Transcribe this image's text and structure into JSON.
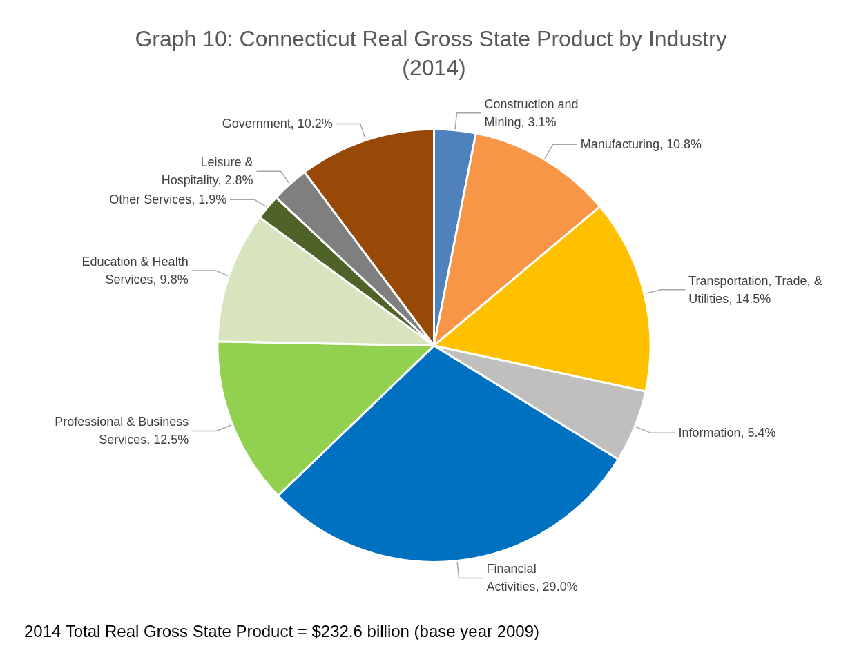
{
  "chart_data": {
    "type": "pie",
    "title": "Graph 10: Connecticut Real Gross State Product by Industry (2014)",
    "categories": [
      "Construction and Mining",
      "Manufacturing",
      "Transportation, Trade, & Utilities",
      "Information",
      "Financial Activities",
      "Professional & Business Services",
      "Education & Health Services",
      "Other Services",
      "Leisure & Hospitality",
      "Government"
    ],
    "values": [
      3.1,
      10.8,
      14.5,
      5.4,
      29.0,
      12.5,
      9.8,
      1.9,
      2.8,
      10.2
    ],
    "value_labels": [
      "3.1%",
      "10.8%",
      "14.5%",
      "5.4%",
      "29.0%",
      "12.5%",
      "9.8%",
      "1.9%",
      "2.8%",
      "10.2%"
    ],
    "colors": [
      "#4f81bd",
      "#f79646",
      "#ffc000",
      "#bfbfbf",
      "#0070c0",
      "#92d050",
      "#d7e4bd",
      "#4f6228",
      "#7f7f7f",
      "#984807"
    ],
    "legend": false,
    "annotations": [
      "2014 Total Real Gross State Product = $232.6 billion (base year 2009)"
    ]
  }
}
